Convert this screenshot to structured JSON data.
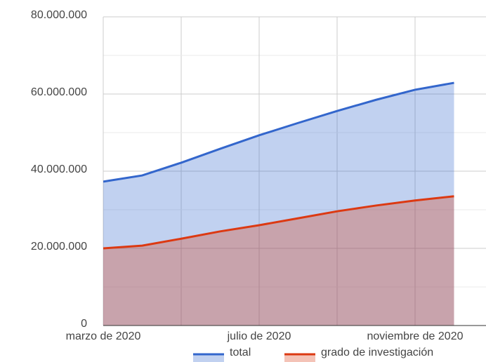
{
  "chart_data": {
    "type": "area",
    "x": [
      "2020-03",
      "2020-04",
      "2020-05",
      "2020-06",
      "2020-07",
      "2020-08",
      "2020-09",
      "2020-10",
      "2020-11",
      "2020-12"
    ],
    "series": [
      {
        "name": "total",
        "color": "#3366cc",
        "values": [
          37300000,
          38900000,
          42200000,
          45800000,
          49300000,
          52500000,
          55600000,
          58500000,
          61100000,
          62900000
        ]
      },
      {
        "name": "grado de investigación",
        "color": "#dc3912",
        "values": [
          20000000,
          20700000,
          22500000,
          24400000,
          26000000,
          27800000,
          29600000,
          31100000,
          32400000,
          33500000
        ]
      }
    ],
    "xlim": [
      "2020-03",
      "2020-12"
    ],
    "xticks": [
      {
        "value": "2020-03",
        "label": "marzo de 2020"
      },
      {
        "value": "2020-07",
        "label": "julio de 2020"
      },
      {
        "value": "2020-11",
        "label": "noviembre de 2020"
      }
    ],
    "ylim": [
      0,
      80000000
    ],
    "yticks": [
      0,
      {
        "value": 20000000,
        "label": "20.000.000"
      },
      {
        "value": 40000000,
        "label": "40.000.000"
      },
      {
        "value": 60000000,
        "label": "60.000.000"
      },
      {
        "value": 80000000,
        "label": "80.000.000"
      }
    ],
    "grid": true,
    "legend": "bottom"
  }
}
